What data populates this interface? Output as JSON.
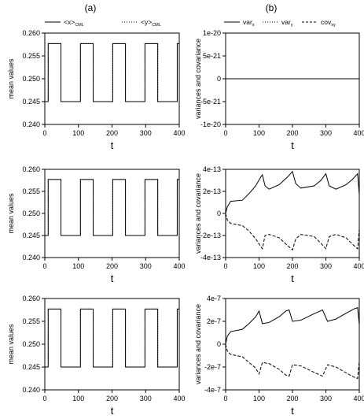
{
  "panel_labels": {
    "left": "(a)",
    "right": "(b)"
  },
  "legend_left": {
    "x": {
      "label": "<x>",
      "sub": "CML"
    },
    "y": {
      "label": "<y>",
      "sub": "CML"
    }
  },
  "legend_right": {
    "varx": {
      "label": "var",
      "sub": "x"
    },
    "vary": {
      "label": "var",
      "sub": "y"
    },
    "cov": {
      "label": "cov",
      "sub": "xy"
    }
  },
  "chart_data": [
    {
      "id": "a1",
      "type": "line",
      "ylabel": "mean values",
      "xlabel": "t",
      "xlim": [
        0,
        400
      ],
      "ylim": [
        0.24,
        0.26
      ],
      "xticks": [
        "0",
        "100",
        "200",
        "300",
        "400"
      ],
      "yticks": [
        "0.240",
        "0.245",
        "0.250",
        "0.255",
        "0.260"
      ],
      "series": [
        {
          "name": "<x>CML",
          "style": "solid",
          "waveform": "square",
          "low": 0.245,
          "high": 0.2577,
          "period": 96,
          "high_start": 10,
          "high_duration": 38
        },
        {
          "name": "<y>CML",
          "style": "dotted",
          "waveform": "square",
          "low": 0.245,
          "high": 0.2577,
          "period": 96,
          "high_start": 10,
          "high_duration": 38
        }
      ]
    },
    {
      "id": "b1",
      "type": "line",
      "ylabel": "variances and covariance",
      "xlabel": "t",
      "xlim": [
        0,
        400
      ],
      "ylim": [
        -1e-20,
        1e-20
      ],
      "xticks": [
        "0",
        "100",
        "200",
        "300",
        "400"
      ],
      "yticks": [
        "1e-20",
        "5e-21",
        "0",
        "-5e-21",
        "-1e-20"
      ],
      "series": [
        {
          "name": "varx",
          "style": "solid",
          "points": [
            [
              0,
              0
            ],
            [
              400,
              0
            ]
          ]
        }
      ]
    },
    {
      "id": "a2",
      "type": "line",
      "ylabel": "mean values",
      "xlabel": "t",
      "xlim": [
        0,
        400
      ],
      "ylim": [
        0.24,
        0.26
      ],
      "xticks": [
        "0",
        "100",
        "200",
        "300",
        "400"
      ],
      "yticks": [
        "0.240",
        "0.245",
        "0.250",
        "0.255",
        "0.260"
      ],
      "series": [
        {
          "name": "<x>CML",
          "style": "solid",
          "waveform": "square",
          "low": 0.245,
          "high": 0.2577,
          "period": 96,
          "high_start": 10,
          "high_duration": 38
        },
        {
          "name": "<y>CML",
          "style": "dotted",
          "waveform": "square",
          "low": 0.245,
          "high": 0.2577,
          "period": 96,
          "high_start": 10,
          "high_duration": 38
        }
      ]
    },
    {
      "id": "b2",
      "type": "line",
      "ylabel": "variances and covariance",
      "xlabel": "t",
      "xlim": [
        0,
        400
      ],
      "ylim": [
        -4e-13,
        4e-13
      ],
      "xticks": [
        "0",
        "100",
        "200",
        "300",
        "400"
      ],
      "yticks": [
        "4e-13",
        "2e-13",
        "0",
        "-2e-13",
        "-4e-13"
      ],
      "series": [
        {
          "name": "varx",
          "style": "solid",
          "points": [
            [
              0,
              0
            ],
            [
              5,
              6e-14
            ],
            [
              15,
              1.1e-13
            ],
            [
              50,
              1.2e-13
            ],
            [
              70,
              1.8e-13
            ],
            [
              90,
              2.5e-13
            ],
            [
              105,
              3.3e-13
            ],
            [
              110,
              3.5e-13
            ],
            [
              118,
              2.5e-13
            ],
            [
              130,
              2.2e-13
            ],
            [
              160,
              2.6e-13
            ],
            [
              185,
              3.3e-13
            ],
            [
              200,
              3.8e-13
            ],
            [
              210,
              2.7e-13
            ],
            [
              225,
              2.3e-13
            ],
            [
              265,
              2.5e-13
            ],
            [
              285,
              3e-13
            ],
            [
              300,
              3.6e-13
            ],
            [
              310,
              2.5e-13
            ],
            [
              330,
              2.2e-13
            ],
            [
              360,
              2.6e-13
            ],
            [
              380,
              3.1e-13
            ],
            [
              395,
              3.6e-13
            ],
            [
              400,
              1.7e-13
            ]
          ]
        },
        {
          "name": "cov",
          "style": "dashed",
          "points": [
            [
              0,
              0
            ],
            [
              5,
              -6e-14
            ],
            [
              15,
              -9e-14
            ],
            [
              50,
              -1.1e-13
            ],
            [
              70,
              -1.6e-13
            ],
            [
              90,
              -2.3e-13
            ],
            [
              105,
              -3e-13
            ],
            [
              110,
              -3.2e-13
            ],
            [
              118,
              -2e-13
            ],
            [
              130,
              -1.9e-13
            ],
            [
              160,
              -2.2e-13
            ],
            [
              185,
              -2.9e-13
            ],
            [
              200,
              -3.3e-13
            ],
            [
              210,
              -2.3e-13
            ],
            [
              225,
              -1.9e-13
            ],
            [
              265,
              -2.1e-13
            ],
            [
              285,
              -2.7e-13
            ],
            [
              300,
              -3.2e-13
            ],
            [
              310,
              -2.1e-13
            ],
            [
              330,
              -1.9e-13
            ],
            [
              360,
              -2.2e-13
            ],
            [
              380,
              -2.8e-13
            ],
            [
              395,
              -3.2e-13
            ],
            [
              400,
              -1.4e-13
            ]
          ]
        }
      ]
    },
    {
      "id": "a3",
      "type": "line",
      "ylabel": "mean values",
      "xlabel": "t",
      "xlim": [
        0,
        400
      ],
      "ylim": [
        0.24,
        0.26
      ],
      "xticks": [
        "0",
        "100",
        "200",
        "300",
        "400"
      ],
      "yticks": [
        "0.240",
        "0.245",
        "0.250",
        "0.255",
        "0.260"
      ],
      "series": [
        {
          "name": "<x>CML",
          "style": "solid",
          "waveform": "square",
          "low": 0.245,
          "high": 0.2577,
          "period": 96,
          "high_start": 10,
          "high_duration": 38
        },
        {
          "name": "<y>CML",
          "style": "dotted",
          "waveform": "square",
          "low": 0.245,
          "high": 0.2577,
          "period": 96,
          "high_start": 10,
          "high_duration": 38
        }
      ]
    },
    {
      "id": "b3",
      "type": "line",
      "ylabel": "variances and covariance",
      "xlabel": "t",
      "xlim": [
        0,
        400
      ],
      "ylim": [
        -4e-07,
        4e-07
      ],
      "xticks": [
        "0",
        "100",
        "200",
        "300",
        "400"
      ],
      "yticks": [
        "4e-7",
        "2e-7",
        "0",
        "-2e-7",
        "-4e-7"
      ],
      "series": [
        {
          "name": "varx",
          "style": "solid",
          "points": [
            [
              0,
              0
            ],
            [
              5,
              7e-08
            ],
            [
              15,
              1.1e-07
            ],
            [
              50,
              1.3e-07
            ],
            [
              70,
              1.8e-07
            ],
            [
              90,
              2.4e-07
            ],
            [
              100,
              2.9e-07
            ],
            [
              110,
              1.8e-07
            ],
            [
              130,
              1.9e-07
            ],
            [
              160,
              2.4e-07
            ],
            [
              180,
              2.9e-07
            ],
            [
              190,
              3e-07
            ],
            [
              200,
              2e-07
            ],
            [
              225,
              2.1e-07
            ],
            [
              260,
              2.6e-07
            ],
            [
              290,
              3e-07
            ],
            [
              305,
              2e-07
            ],
            [
              330,
              2.2e-07
            ],
            [
              360,
              2.7e-07
            ],
            [
              385,
              3.1e-07
            ],
            [
              395,
              3.2e-07
            ],
            [
              400,
              1.7e-07
            ]
          ]
        },
        {
          "name": "cov",
          "style": "dashed",
          "points": [
            [
              0,
              0
            ],
            [
              5,
              -6e-08
            ],
            [
              15,
              -9e-08
            ],
            [
              50,
              -1.1e-07
            ],
            [
              70,
              -1.6e-07
            ],
            [
              90,
              -2.1e-07
            ],
            [
              100,
              -2.6e-07
            ],
            [
              110,
              -1.6e-07
            ],
            [
              130,
              -1.7e-07
            ],
            [
              160,
              -2.2e-07
            ],
            [
              180,
              -2.7e-07
            ],
            [
              190,
              -2.8e-07
            ],
            [
              200,
              -1.8e-07
            ],
            [
              225,
              -1.9e-07
            ],
            [
              260,
              -2.4e-07
            ],
            [
              290,
              -2.8e-07
            ],
            [
              305,
              -1.8e-07
            ],
            [
              330,
              -2e-07
            ],
            [
              360,
              -2.5e-07
            ],
            [
              385,
              -2.9e-07
            ],
            [
              395,
              -3e-07
            ],
            [
              400,
              -1.5e-07
            ]
          ]
        }
      ]
    }
  ]
}
